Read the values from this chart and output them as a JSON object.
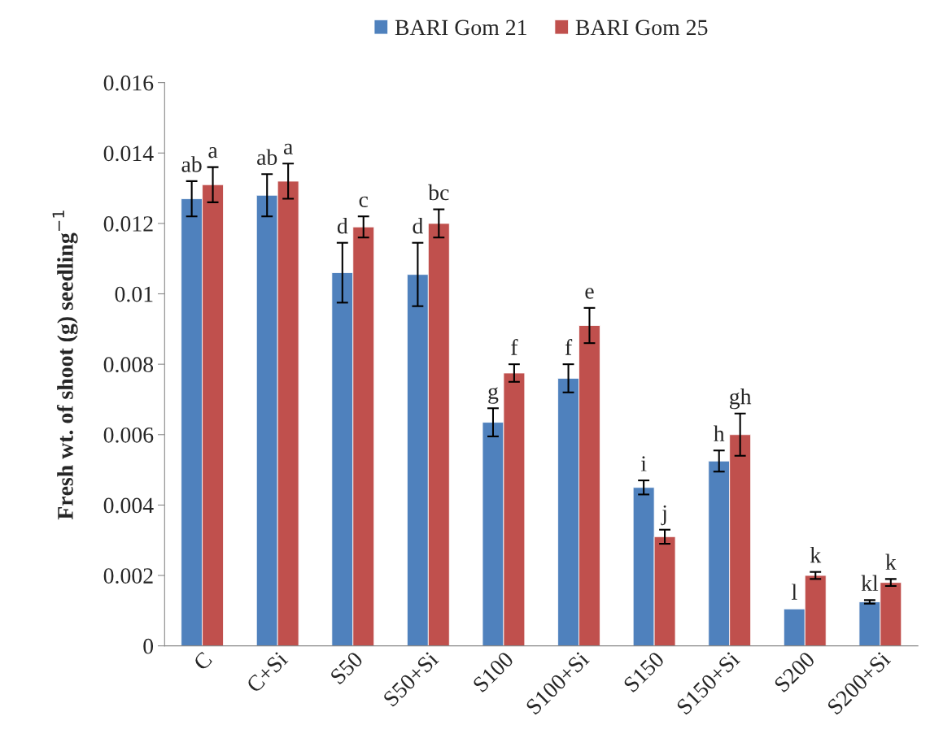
{
  "chart_data": {
    "type": "bar",
    "ylabel": "Fresh wt. of shoot (g) seedling$^{−1}$",
    "categories": [
      "C",
      "C+Si",
      "S50",
      "S50+Si",
      "S100",
      "S100+Si",
      "S150",
      "S150+Si",
      "S200",
      "S200+Si"
    ],
    "series": [
      {
        "name": "BARI Gom 21",
        "color": "#4f81bd",
        "values": [
          0.0127,
          0.0128,
          0.0106,
          0.01055,
          0.00635,
          0.0076,
          0.0045,
          0.00525,
          0.00105,
          0.00125
        ],
        "errors": [
          0.0005,
          0.0006,
          0.00085,
          0.0009,
          0.0004,
          0.0004,
          0.0002,
          0.0003,
          null,
          5e-05
        ],
        "value_labels": [
          "ab",
          "ab",
          "d",
          "d",
          "g",
          "f",
          "i",
          "h",
          "l",
          "kl"
        ]
      },
      {
        "name": "BARI Gom 25",
        "color": "#c0504d",
        "values": [
          0.0131,
          0.0132,
          0.0119,
          0.012,
          0.00775,
          0.0091,
          0.0031,
          0.006,
          0.002,
          0.0018
        ],
        "errors": [
          0.0005,
          0.0005,
          0.0003,
          0.0004,
          0.00025,
          0.0005,
          0.0002,
          0.0006,
          0.0001,
          0.0001
        ],
        "value_labels": [
          "a",
          "a",
          "c",
          "bc",
          "f",
          "e",
          "j",
          "gh",
          "k",
          "k"
        ]
      }
    ],
    "ylim": [
      0,
      0.016
    ],
    "yticks": [
      0,
      0.002,
      0.004,
      0.006,
      0.008,
      0.01,
      0.012,
      0.014,
      0.016
    ],
    "legend": "top",
    "grid": false
  }
}
